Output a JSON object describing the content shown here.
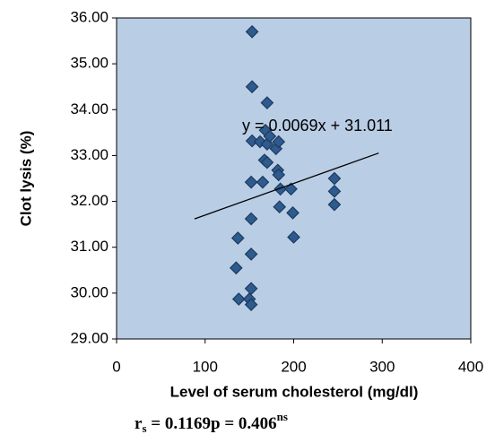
{
  "chart_data": {
    "type": "scatter",
    "x_label": "Level of serum cholesterol (mg/dl)",
    "y_label": "Clot lysis (%)",
    "color": "#2e5b8e",
    "background": "#b9cde5",
    "x": [
      137,
      135,
      138,
      150,
      152,
      152,
      152,
      152,
      152,
      153,
      153,
      153,
      162,
      165,
      167,
      168,
      170,
      170,
      170,
      173,
      180,
      182,
      183,
      183,
      184,
      185,
      197,
      199,
      200,
      246,
      246,
      246
    ],
    "y": [
      31.2,
      30.55,
      29.87,
      29.87,
      30.1,
      29.75,
      30.85,
      31.62,
      32.42,
      33.32,
      34.5,
      35.7,
      33.3,
      32.42,
      32.9,
      33.55,
      34.15,
      32.85,
      33.25,
      33.42,
      33.15,
      32.68,
      33.3,
      32.58,
      31.88,
      32.27,
      32.27,
      31.75,
      31.22,
      32.5,
      32.22,
      31.93
    ],
    "xlim": [
      0,
      400
    ],
    "xticks": [
      0,
      100,
      200,
      300,
      400
    ],
    "ylim": [
      29,
      36
    ],
    "yticks": [
      {
        "value": 29,
        "label": "29.00"
      },
      {
        "value": 30,
        "label": "30.00"
      },
      {
        "value": 31,
        "label": "31.00"
      },
      {
        "value": 32,
        "label": "32.00"
      },
      {
        "value": 33,
        "label": "33.00"
      },
      {
        "value": 34,
        "label": "34.00"
      },
      {
        "value": 35,
        "label": "35.00"
      },
      {
        "value": 36,
        "label": "36.00"
      }
    ],
    "trendline": {
      "label": "y = 0.0069x + 31.011",
      "slope": 0.0069,
      "intercept": 31.011,
      "x_range": [
        88,
        296
      ]
    },
    "footnote": {
      "symbol": "r",
      "subscript": "s",
      "text": " = 0.1169p = 0.406",
      "superscript": "ns"
    }
  }
}
